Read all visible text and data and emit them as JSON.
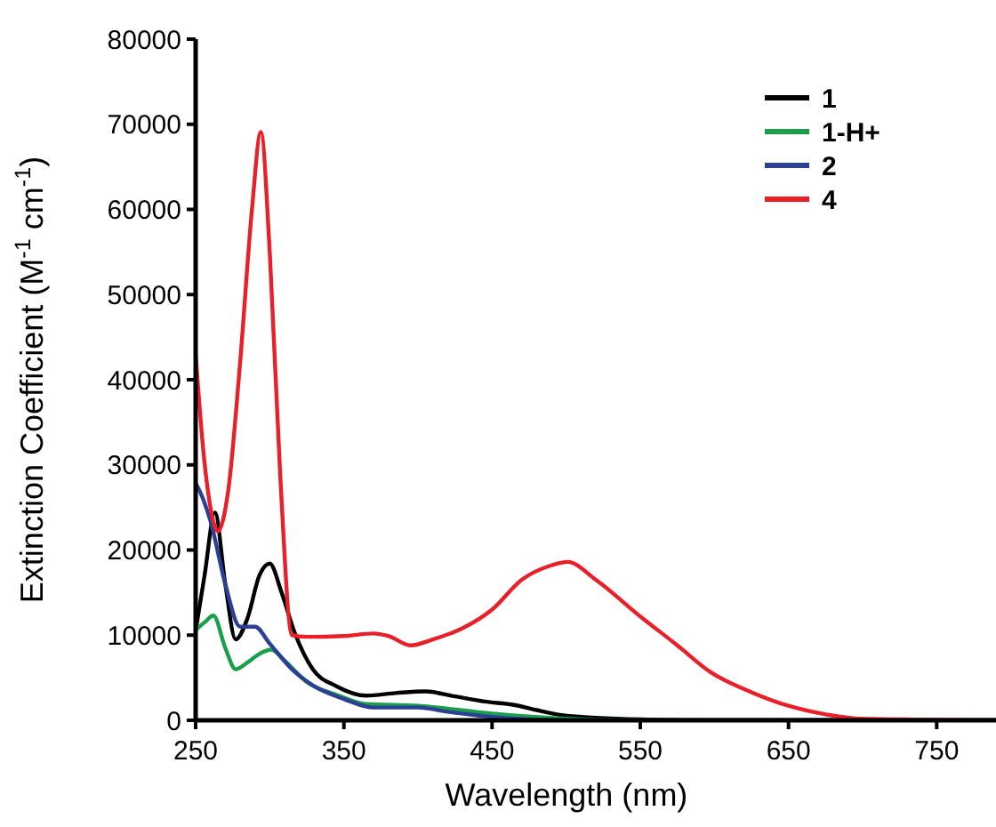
{
  "chart_data": {
    "type": "line",
    "xlabel": "Wavelength (nm)",
    "ylabel": "Extinction Coefficient (M$^{-1}$ cm$^{-1}$)",
    "xlim": [
      250,
      790
    ],
    "xticks": [
      250,
      350,
      450,
      550,
      650,
      750
    ],
    "ylim": [
      0,
      80000
    ],
    "yticks": [
      0,
      10000,
      20000,
      30000,
      40000,
      50000,
      60000,
      70000,
      80000
    ],
    "grid": false,
    "legend": "top right",
    "line_style": "solid",
    "series": [
      {
        "name": "1",
        "color": "#000000",
        "x": [
          250,
          256,
          263,
          270,
          277,
          285,
          293,
          300,
          308,
          317,
          329,
          345,
          365,
          385,
          405,
          425,
          445,
          465,
          480,
          497,
          520,
          550,
          600,
          790
        ],
        "values": [
          10500,
          17000,
          24400,
          16000,
          9500,
          12000,
          17000,
          18400,
          15000,
          10200,
          6000,
          4000,
          2900,
          3200,
          3400,
          2800,
          2200,
          1800,
          1200,
          600,
          300,
          100,
          0,
          0
        ]
      },
      {
        "name": "1-H+",
        "color": "#1aa04a",
        "x": [
          250,
          256,
          262,
          270,
          277,
          285,
          293,
          301,
          310,
          325,
          345,
          365,
          400,
          450,
          500,
          550,
          790
        ],
        "values": [
          10600,
          11500,
          12300,
          8500,
          6000,
          6800,
          7800,
          8300,
          7000,
          4500,
          3000,
          1900,
          1700,
          800,
          200,
          0,
          0
        ]
      },
      {
        "name": "2",
        "color": "#2b3f94",
        "x": [
          250,
          255,
          260,
          270,
          280,
          290,
          300,
          315,
          330,
          350,
          370,
          400,
          420,
          450,
          500,
          790
        ],
        "values": [
          27900,
          26000,
          23400,
          16000,
          11000,
          11000,
          9000,
          6000,
          4000,
          2500,
          1500,
          1500,
          1000,
          400,
          0,
          0
        ]
      },
      {
        "name": "4",
        "color": "#e8202a",
        "x": [
          250,
          255,
          260,
          265,
          272,
          280,
          288,
          294,
          300,
          307,
          315,
          325,
          350,
          370,
          380,
          395,
          410,
          430,
          450,
          470,
          490,
          501,
          520,
          550,
          575,
          597,
          625,
          650,
          675,
          697,
          790
        ],
        "values": [
          43000,
          32000,
          25000,
          22200,
          27000,
          42000,
          60000,
          69100,
          55000,
          29000,
          10000,
          9800,
          9900,
          10200,
          9900,
          8800,
          9500,
          10800,
          13000,
          16500,
          18200,
          18600,
          16500,
          12200,
          8800,
          5700,
          3300,
          1700,
          700,
          200,
          0
        ]
      }
    ]
  }
}
